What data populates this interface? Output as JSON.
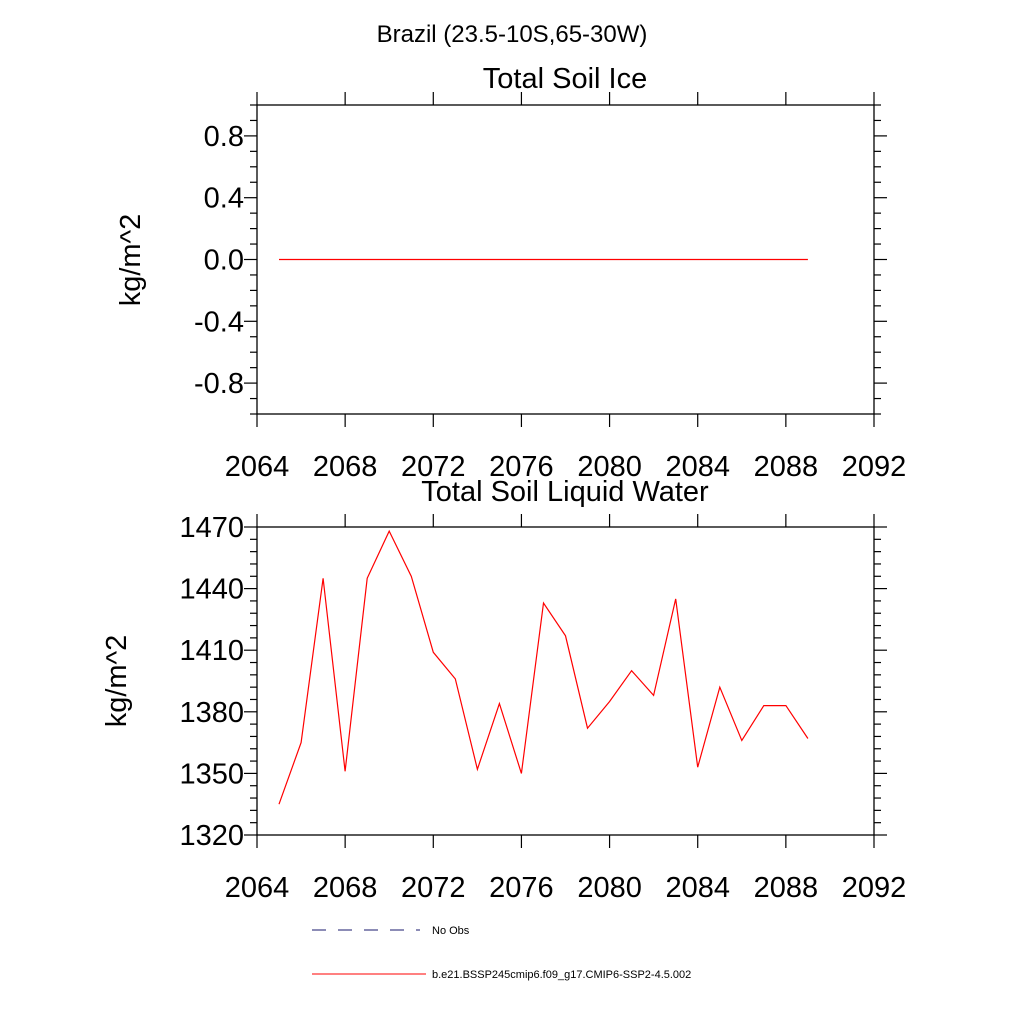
{
  "supertitle": "Brazil (23.5-10S,65-30W)",
  "colors": {
    "model": "#ff0000",
    "obs": "#1a1a6e",
    "axis": "#000000"
  },
  "chart_data": [
    {
      "type": "line",
      "title": "Total Soil Ice",
      "ylabel": "kg/m^2",
      "xlabel": "",
      "xlim": [
        2064,
        2092
      ],
      "ylim": [
        -1.0,
        1.0
      ],
      "xticks": [
        2064,
        2068,
        2072,
        2076,
        2080,
        2084,
        2088,
        2092
      ],
      "yticks": [
        -0.8,
        -0.4,
        0.0,
        0.4,
        0.8
      ],
      "ytick_labels": [
        "-0.8",
        "-0.4",
        "0.0",
        "0.4",
        "0.8"
      ],
      "yminor": 0.1,
      "xminor": 1,
      "series": [
        {
          "name": "b.e21.BSSP245cmip6.f09_g17.CMIP6-SSP2-4.5.002",
          "x": [
            2065,
            2066,
            2067,
            2068,
            2069,
            2070,
            2071,
            2072,
            2073,
            2074,
            2075,
            2076,
            2077,
            2078,
            2079,
            2080,
            2081,
            2082,
            2083,
            2084,
            2085,
            2086,
            2087,
            2088,
            2089
          ],
          "y": [
            0,
            0,
            0,
            0,
            0,
            0,
            0,
            0,
            0,
            0,
            0,
            0,
            0,
            0,
            0,
            0,
            0,
            0,
            0,
            0,
            0,
            0,
            0,
            0,
            0
          ]
        }
      ]
    },
    {
      "type": "line",
      "title": "Total Soil Liquid Water",
      "ylabel": "kg/m^2",
      "xlabel": "",
      "xlim": [
        2064,
        2092
      ],
      "ylim": [
        1320,
        1470
      ],
      "xticks": [
        2064,
        2068,
        2072,
        2076,
        2080,
        2084,
        2088,
        2092
      ],
      "yticks": [
        1320,
        1350,
        1380,
        1410,
        1440,
        1470
      ],
      "ytick_labels": [
        "1320",
        "1350",
        "1380",
        "1410",
        "1440",
        "1470"
      ],
      "yminor": 6,
      "xminor": 1,
      "series": [
        {
          "name": "b.e21.BSSP245cmip6.f09_g17.CMIP6-SSP2-4.5.002",
          "x": [
            2065,
            2066,
            2067,
            2068,
            2069,
            2070,
            2071,
            2072,
            2073,
            2074,
            2075,
            2076,
            2077,
            2078,
            2079,
            2080,
            2081,
            2082,
            2083,
            2084,
            2085,
            2086,
            2087,
            2088,
            2089
          ],
          "y": [
            1335,
            1365,
            1445,
            1351,
            1445,
            1468,
            1446,
            1409,
            1396,
            1352,
            1384,
            1350,
            1433,
            1417,
            1372,
            1385,
            1400,
            1388,
            1435,
            1353,
            1392,
            1366,
            1383,
            1383,
            1367
          ]
        }
      ]
    }
  ],
  "legend": [
    {
      "label": "No Obs",
      "style": "dashed",
      "color": "#1a1a6e"
    },
    {
      "label": "b.e21.BSSP245cmip6.f09_g17.CMIP6-SSP2-4.5.002",
      "style": "solid",
      "color": "#ff0000"
    }
  ]
}
